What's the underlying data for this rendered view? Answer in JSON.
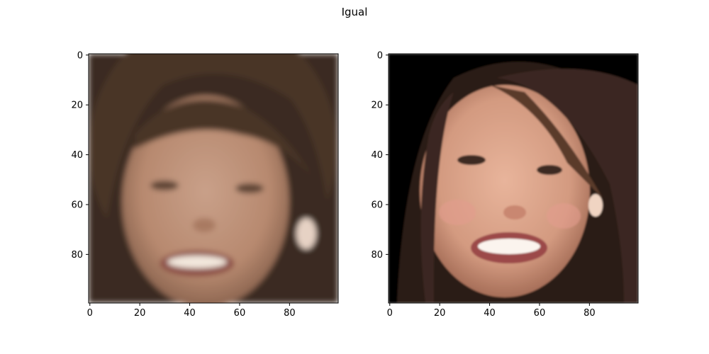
{
  "figure": {
    "title": "Igual"
  },
  "chart_data": [
    {
      "type": "image",
      "title": "",
      "image_shape": [
        100,
        100
      ],
      "subject": "woman's face, smiling, blurry image",
      "background_color": "#3a2a20",
      "x_ticks": [
        0,
        20,
        40,
        60,
        80
      ],
      "y_ticks": [
        0,
        20,
        40,
        60,
        80
      ],
      "xlim": [
        -0.5,
        99.5
      ],
      "ylim": [
        99.5,
        -0.5
      ],
      "origin": "upper"
    },
    {
      "type": "image",
      "title": "",
      "image_shape": [
        100,
        100
      ],
      "subject": "woman's face, smiling, sharp image",
      "background_color": "#050505",
      "x_ticks": [
        0,
        20,
        40,
        60,
        80
      ],
      "y_ticks": [
        0,
        20,
        40,
        60,
        80
      ],
      "xlim": [
        -0.5,
        99.5
      ],
      "ylim": [
        99.5,
        -0.5
      ],
      "origin": "upper"
    }
  ]
}
